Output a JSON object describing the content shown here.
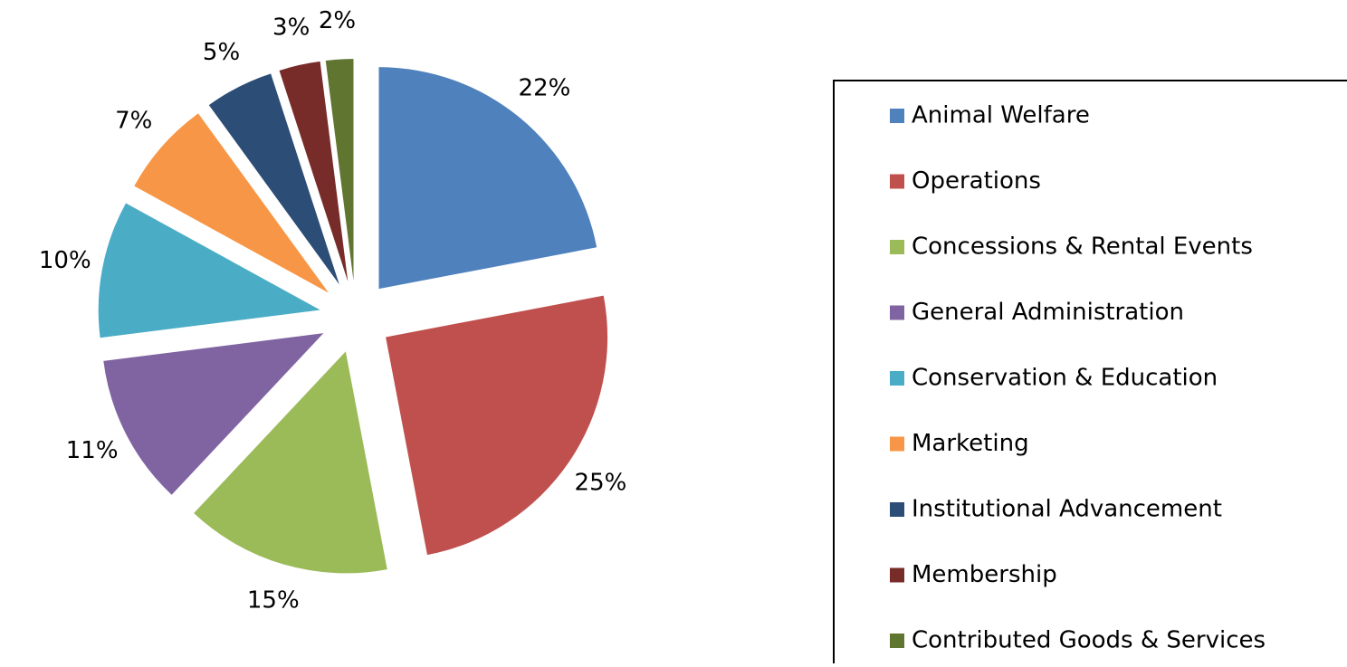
{
  "chart_data": {
    "type": "pie",
    "categories": [
      "Animal Welfare",
      "Operations",
      "Concessions & Rental Events",
      "General Administration",
      "Conservation & Education",
      "Marketing",
      "Institutional Advancement",
      "Membership",
      "Contributed Goods & Services"
    ],
    "values": [
      22,
      25,
      15,
      11,
      10,
      7,
      5,
      3,
      2
    ],
    "value_labels": [
      "22%",
      "25%",
      "15%",
      "11%",
      "10%",
      "7%",
      "5%",
      "3%",
      "2%"
    ],
    "colors": [
      "#4f81bd",
      "#c0504d",
      "#9bbb59",
      "#8064a2",
      "#4bacc6",
      "#f79646",
      "#2c4d75",
      "#772c2a",
      "#5f7530"
    ],
    "legend": "right"
  }
}
